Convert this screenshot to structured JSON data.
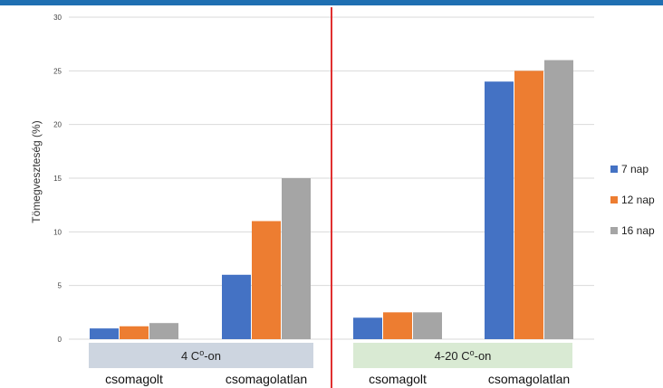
{
  "chart_data": {
    "type": "bar",
    "ylabel": "Tömegveszteség (%)",
    "ylim": [
      0,
      30
    ],
    "yticks": [
      0,
      5,
      10,
      15,
      20,
      25,
      30
    ],
    "grid": true,
    "legend_position": "right",
    "groups": [
      {
        "label": "4 C°-on",
        "label_text": "4 C",
        "label_sup": "o",
        "label_suffix": "-on",
        "band_color": "#cdd5e0",
        "categories": [
          "csomagolt",
          "csomagolatlan"
        ]
      },
      {
        "label": "4-20 C°-on",
        "label_text": "4-20 C",
        "label_sup": "o",
        "label_suffix": "-on",
        "band_color": "#d9ead3",
        "categories": [
          "csomagolt",
          "csomagolatlan"
        ]
      }
    ],
    "categories": [
      "csomagolt",
      "csomagolatlan",
      "csomagolt",
      "csomagolatlan"
    ],
    "series": [
      {
        "name": "7 nap",
        "color": "#4472c4",
        "values": [
          1,
          6,
          2,
          24
        ]
      },
      {
        "name": "12 nap",
        "color": "#ed7d31",
        "values": [
          1.2,
          11,
          2.5,
          25
        ]
      },
      {
        "name": "16 nap",
        "color": "#a5a5a5",
        "values": [
          1.5,
          15,
          2.5,
          26
        ]
      }
    ],
    "colors": {
      "top_bar": "#1f6fb2",
      "divider": "#e03030",
      "grid": "#d9d9d9"
    }
  }
}
